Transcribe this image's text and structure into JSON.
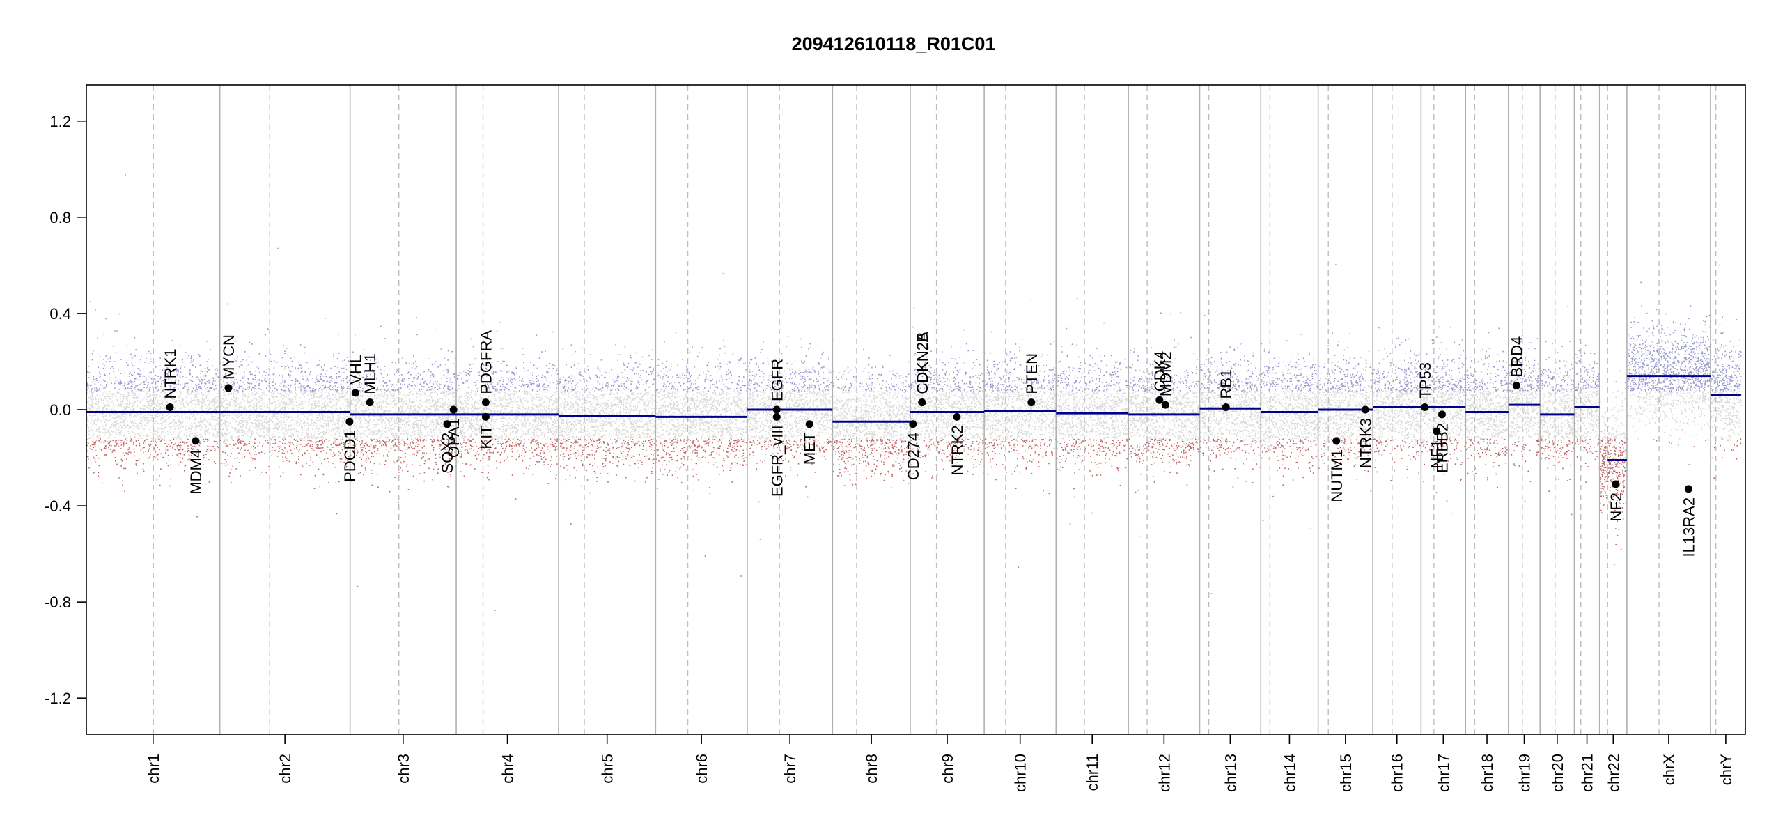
{
  "chart_data": {
    "type": "scatter",
    "title": "209412610118_R01C01",
    "xlabel": "",
    "ylabel": "",
    "ylim": [
      -1.35,
      1.35
    ],
    "yticks": [
      -1.2,
      -0.8,
      -0.4,
      0.0,
      0.4,
      0.8,
      1.2
    ],
    "grid": false,
    "genome_length_mb": 3095,
    "colors": {
      "segment": "#00008b",
      "gain_points": "#8080c0",
      "loss_points": "#b04040",
      "neutral_points": "#c8c8c8",
      "chrom_boundary": "#b0b0b0",
      "centromere": "#bdbdbd"
    },
    "chromosomes": [
      {
        "name": "chr1",
        "length_mb": 249,
        "centromere_mb": 125
      },
      {
        "name": "chr2",
        "length_mb": 243,
        "centromere_mb": 93
      },
      {
        "name": "chr3",
        "length_mb": 198,
        "centromere_mb": 91
      },
      {
        "name": "chr4",
        "length_mb": 191,
        "centromere_mb": 50
      },
      {
        "name": "chr5",
        "length_mb": 181,
        "centromere_mb": 48
      },
      {
        "name": "chr6",
        "length_mb": 171,
        "centromere_mb": 60
      },
      {
        "name": "chr7",
        "length_mb": 159,
        "centromere_mb": 60
      },
      {
        "name": "chr8",
        "length_mb": 145,
        "centromere_mb": 45
      },
      {
        "name": "chr9",
        "length_mb": 138,
        "centromere_mb": 49
      },
      {
        "name": "chr10",
        "length_mb": 134,
        "centromere_mb": 40
      },
      {
        "name": "chr11",
        "length_mb": 135,
        "centromere_mb": 53
      },
      {
        "name": "chr12",
        "length_mb": 133,
        "centromere_mb": 35
      },
      {
        "name": "chr13",
        "length_mb": 114,
        "centromere_mb": 17
      },
      {
        "name": "chr14",
        "length_mb": 107,
        "centromere_mb": 17
      },
      {
        "name": "chr15",
        "length_mb": 102,
        "centromere_mb": 19
      },
      {
        "name": "chr16",
        "length_mb": 90,
        "centromere_mb": 36
      },
      {
        "name": "chr17",
        "length_mb": 83,
        "centromere_mb": 24
      },
      {
        "name": "chr18",
        "length_mb": 80,
        "centromere_mb": 17
      },
      {
        "name": "chr19",
        "length_mb": 59,
        "centromere_mb": 26
      },
      {
        "name": "chr20",
        "length_mb": 64,
        "centromere_mb": 28
      },
      {
        "name": "chr21",
        "length_mb": 47,
        "centromere_mb": 12
      },
      {
        "name": "chr22",
        "length_mb": 51,
        "centromere_mb": 15
      },
      {
        "name": "chrX",
        "length_mb": 156,
        "centromere_mb": 60
      },
      {
        "name": "chrY",
        "length_mb": 57,
        "centromere_mb": 10
      }
    ],
    "segments": [
      {
        "chr": "chr1",
        "value": -0.01
      },
      {
        "chr": "chr2",
        "value": -0.01
      },
      {
        "chr": "chr3",
        "value": -0.02
      },
      {
        "chr": "chr4",
        "value": -0.02
      },
      {
        "chr": "chr5",
        "value": -0.025
      },
      {
        "chr": "chr6",
        "value": -0.03
      },
      {
        "chr": "chr7",
        "value": 0.0
      },
      {
        "chr": "chr8",
        "value": -0.05
      },
      {
        "chr": "chr9",
        "value": -0.01
      },
      {
        "chr": "chr10",
        "value": -0.005
      },
      {
        "chr": "chr11",
        "value": -0.015
      },
      {
        "chr": "chr12",
        "value": -0.02
      },
      {
        "chr": "chr13",
        "value": 0.005
      },
      {
        "chr": "chr14",
        "value": -0.01
      },
      {
        "chr": "chr15",
        "value": 0.0
      },
      {
        "chr": "chr16",
        "value": 0.01
      },
      {
        "chr": "chr17",
        "value": 0.01
      },
      {
        "chr": "chr18",
        "value": -0.01
      },
      {
        "chr": "chr19",
        "value": 0.02
      },
      {
        "chr": "chr20",
        "value": -0.02
      },
      {
        "chr": "chr21",
        "value": 0.01
      },
      {
        "chr": "chr22",
        "value": -0.21,
        "start_mb": 28,
        "end_mb": 51
      },
      {
        "chr": "chr22",
        "value": -0.21,
        "start_mb": 15,
        "end_mb": 28
      },
      {
        "chr": "chrX",
        "value": 0.14
      },
      {
        "chr": "chrY",
        "value": 0.06
      }
    ],
    "genes": [
      {
        "name": "NTRK1",
        "chr": "chr1",
        "pos_mb": 156,
        "value": 0.01,
        "label_side": "above"
      },
      {
        "name": "MDM4",
        "chr": "chr1",
        "pos_mb": 204,
        "value": -0.13,
        "label_side": "below"
      },
      {
        "name": "MYCN",
        "chr": "chr2",
        "pos_mb": 16,
        "value": 0.09,
        "label_side": "above"
      },
      {
        "name": "PDCD1",
        "chr": "chr2",
        "pos_mb": 242,
        "value": -0.05,
        "label_side": "below"
      },
      {
        "name": "VHL",
        "chr": "chr3",
        "pos_mb": 10,
        "value": 0.07,
        "label_side": "above"
      },
      {
        "name": "MLH1",
        "chr": "chr3",
        "pos_mb": 37,
        "value": 0.03,
        "label_side": "above"
      },
      {
        "name": "SOX2",
        "chr": "chr3",
        "pos_mb": 181,
        "value": -0.06,
        "label_side": "below"
      },
      {
        "name": "OPA1",
        "chr": "chr3",
        "pos_mb": 193,
        "value": 0.0,
        "label_side": "below"
      },
      {
        "name": "KIT",
        "chr": "chr4",
        "pos_mb": 55,
        "value": -0.03,
        "label_side": "below"
      },
      {
        "name": "PDGFRA",
        "chr": "chr4",
        "pos_mb": 55,
        "value": 0.03,
        "label_side": "above"
      },
      {
        "name": "EGFR",
        "chr": "chr7",
        "pos_mb": 55,
        "value": 0.0,
        "label_side": "above"
      },
      {
        "name": "EGFR_vIII",
        "chr": "chr7",
        "pos_mb": 55,
        "value": -0.03,
        "label_side": "below"
      },
      {
        "name": "MET",
        "chr": "chr7",
        "pos_mb": 116,
        "value": -0.06,
        "label_side": "below"
      },
      {
        "name": "CD274",
        "chr": "chr9",
        "pos_mb": 5,
        "value": -0.06,
        "label_side": "below"
      },
      {
        "name": "CDKN2A",
        "chr": "chr9",
        "pos_mb": 22,
        "value": 0.03,
        "label_side": "above"
      },
      {
        "name": "CDKN2B",
        "chr": "chr9",
        "pos_mb": 22,
        "value": 0.03,
        "label_side": "above"
      },
      {
        "name": "NTRK2",
        "chr": "chr9",
        "pos_mb": 87,
        "value": -0.03,
        "label_side": "below"
      },
      {
        "name": "PTEN",
        "chr": "chr10",
        "pos_mb": 88,
        "value": 0.03,
        "label_side": "above"
      },
      {
        "name": "CDK4",
        "chr": "chr12",
        "pos_mb": 58,
        "value": 0.04,
        "label_side": "above"
      },
      {
        "name": "MDM2",
        "chr": "chr12",
        "pos_mb": 69,
        "value": 0.02,
        "label_side": "above"
      },
      {
        "name": "RB1",
        "chr": "chr13",
        "pos_mb": 49,
        "value": 0.01,
        "label_side": "above"
      },
      {
        "name": "NUTM1",
        "chr": "chr15",
        "pos_mb": 34,
        "value": -0.13,
        "label_side": "below"
      },
      {
        "name": "NTRK3",
        "chr": "chr15",
        "pos_mb": 88,
        "value": 0.0,
        "label_side": "below"
      },
      {
        "name": "TP53",
        "chr": "chr17",
        "pos_mb": 7,
        "value": 0.01,
        "label_side": "above"
      },
      {
        "name": "NF1",
        "chr": "chr17",
        "pos_mb": 29,
        "value": -0.09,
        "label_side": "below"
      },
      {
        "name": "ERBB2",
        "chr": "chr17",
        "pos_mb": 39,
        "value": -0.02,
        "label_side": "below"
      },
      {
        "name": "BRD4",
        "chr": "chr19",
        "pos_mb": 15,
        "value": 0.1,
        "label_side": "above"
      },
      {
        "name": "NF2",
        "chr": "chr22",
        "pos_mb": 30,
        "value": -0.31,
        "label_side": "below"
      },
      {
        "name": "IL13RA2",
        "chr": "chrX",
        "pos_mb": 115,
        "value": -0.33,
        "label_side": "below"
      }
    ]
  }
}
